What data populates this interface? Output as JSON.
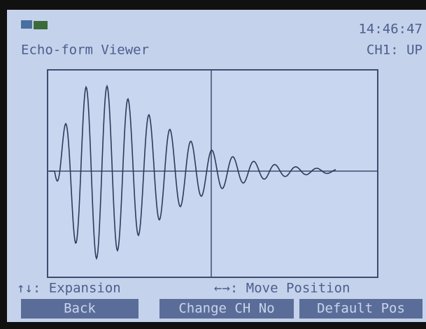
{
  "status_bar": {
    "time": "14:46:47",
    "title": "Echo-form Viewer",
    "channel": "CH1: UP"
  },
  "hints": [
    "↑↓: Expansion",
    "←→: Move Position"
  ],
  "buttons": [
    "Back",
    "Change CH No",
    "Default Pos"
  ]
}
